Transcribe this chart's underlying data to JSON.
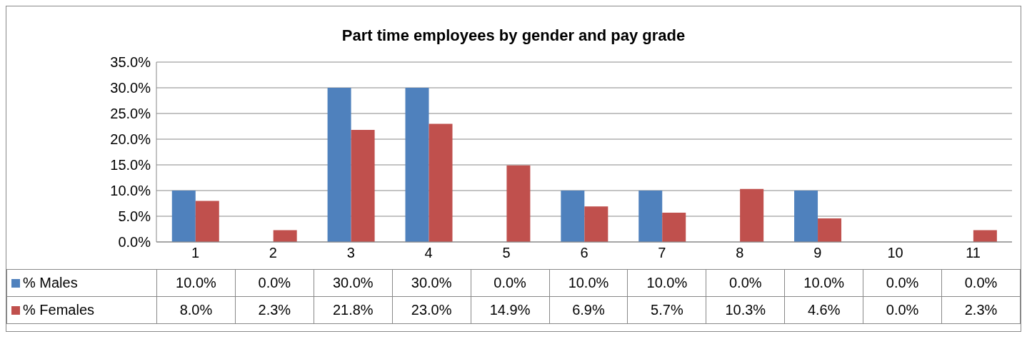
{
  "chart_data": {
    "type": "bar",
    "title": "Part time employees by gender and pay grade",
    "categories": [
      "1",
      "2",
      "3",
      "4",
      "5",
      "6",
      "7",
      "8",
      "9",
      "10",
      "11"
    ],
    "series": [
      {
        "name": "% Males",
        "color": "#4f81bd",
        "values": [
          10,
          0,
          30,
          30,
          0,
          10,
          10,
          0,
          10,
          0,
          0
        ],
        "value_labels": [
          "10.0%",
          "0.0%",
          "30.0%",
          "30.0%",
          "0.0%",
          "10.0%",
          "10.0%",
          "0.0%",
          "10.0%",
          "0.0%",
          "0.0%"
        ]
      },
      {
        "name": "% Females",
        "color": "#c0504d",
        "values": [
          8,
          2.3,
          21.8,
          23,
          14.9,
          6.9,
          5.7,
          10.3,
          4.6,
          0,
          2.3
        ],
        "value_labels": [
          "8.0%",
          "2.3%",
          "21.8%",
          "23.0%",
          "14.9%",
          "6.9%",
          "5.7%",
          "10.3%",
          "4.6%",
          "0.0%",
          "2.3%"
        ]
      }
    ],
    "ylim": [
      0,
      35
    ],
    "yticks": [
      {
        "value": 0,
        "label": "0.0%"
      },
      {
        "value": 5,
        "label": "5.0%"
      },
      {
        "value": 10,
        "label": "10.0%"
      },
      {
        "value": 15,
        "label": "15.0%"
      },
      {
        "value": 20,
        "label": "20.0%"
      },
      {
        "value": 25,
        "label": "25.0%"
      },
      {
        "value": 30,
        "label": "30.0%"
      },
      {
        "value": 35,
        "label": "35.0%"
      }
    ],
    "grid": "y",
    "legend": "bottom"
  }
}
